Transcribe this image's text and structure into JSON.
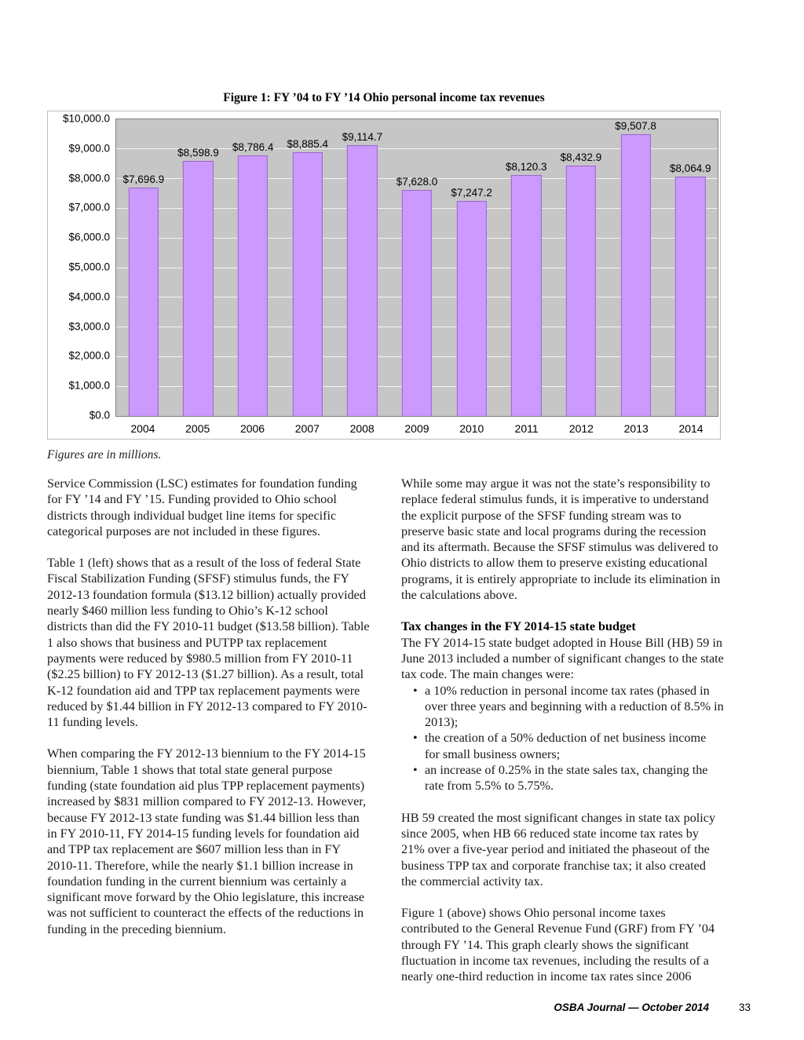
{
  "figure": {
    "caption": "Figures are in millions."
  },
  "chart_data": {
    "type": "bar",
    "title": "Figure 1: FY ’04 to FY ’14 Ohio personal income tax revenues",
    "categories": [
      "2004",
      "2005",
      "2006",
      "2007",
      "2008",
      "2009",
      "2010",
      "2011",
      "2012",
      "2013",
      "2014"
    ],
    "values": [
      7696.9,
      8598.9,
      8786.4,
      8885.4,
      9114.7,
      7628.0,
      7247.2,
      8120.3,
      8432.9,
      9507.8,
      8064.9
    ],
    "value_labels": [
      "$7,696.9",
      "$8,598.9",
      "$8,786.4",
      "$8,885.4",
      "$9,114.7",
      "$7,628.0",
      "$7,247.2",
      "$8,120.3",
      "$8,432.9",
      "$9,507.8",
      "$8,064.9"
    ],
    "xlabel": "",
    "ylabel": "",
    "ylim": [
      0,
      10000
    ],
    "ytick_interval": 1000,
    "ytick_labels": [
      "$0.0",
      "$1,000.0",
      "$2,000.0",
      "$3,000.0",
      "$4,000.0",
      "$5,000.0",
      "$6,000.0",
      "$7,000.0",
      "$8,000.0",
      "$9,000.0",
      "$10,000.0"
    ],
    "grid": true,
    "legend": false,
    "bar_color": "#CC99FF",
    "bar_border_color": "#9966CC",
    "plot_background": "#C6C6C6"
  },
  "columns": {
    "left": [
      {
        "type": "p",
        "text": "Service Commission (LSC) estimates for foundation funding for FY ’14 and FY ’15. Funding provided to Ohio school districts through individual budget line items for specific categorical purposes are not included in these figures."
      },
      {
        "type": "p",
        "text": "Table 1 (left) shows that as a result of the loss of federal State Fiscal Stabilization Funding (SFSF) stimulus funds, the FY 2012-13 foundation formula ($13.12 billion) actually provided nearly $460 million less funding to Ohio’s K-12 school districts than did the FY 2010-11 budget ($13.58 billion). Table 1 also shows that business and PUTPP tax replacement payments were reduced by $980.5 million from FY 2010-11 ($2.25 billion) to FY 2012-13 ($1.27 billion). As a result, total K-12 foundation aid and TPP tax replacement payments were reduced by $1.44 billion in FY 2012-13 compared to FY 2010-11 funding levels."
      },
      {
        "type": "p",
        "text": "When comparing the FY 2012-13 biennium to the FY 2014-15 biennium, Table 1 shows that total state general purpose funding (state foundation aid plus TPP replacement payments) increased by $831 million compared to FY 2012-13. However, because FY 2012-13 state funding was $1.44 billion less than in FY 2010-11, FY 2014-15 funding levels for foundation aid and TPP tax replacement are $607 million less than in FY 2010-11. Therefore, while the nearly $1.1 billion increase in foundation funding in the current biennium was certainly a significant move forward by the Ohio legislature, this increase was not sufficient to counteract the effects of the reductions in funding in the preceding biennium."
      }
    ],
    "right": [
      {
        "type": "p",
        "text": "While some may argue it was not the state’s responsibility to replace federal stimulus funds, it is imperative to understand the explicit purpose of the SFSF funding stream was to preserve basic state and local programs during the recession and its aftermath. Because the SFSF stimulus was delivered to Ohio districts to allow them to preserve existing educational programs, it is entirely appropriate to include its elimination in the calculations above."
      },
      {
        "type": "h",
        "text": "Tax changes in the FY 2014-15 state budget"
      },
      {
        "type": "p",
        "tight": true,
        "text": "The FY 2014-15 state budget adopted in House Bill (HB) 59 in June 2013 included a number of significant changes to the state tax code. The main changes were:"
      },
      {
        "type": "ul",
        "items": [
          "a 10% reduction in personal income tax rates (phased in over three years and beginning with a reduction of 8.5% in 2013);",
          "the creation of a 50% deduction of net business income for small business owners;",
          "an increase of 0.25% in the state sales tax, changing the rate from 5.5% to 5.75%."
        ]
      },
      {
        "type": "p",
        "text": "HB 59 created the most significant changes in state tax policy since 2005, when HB 66 reduced state income tax rates by 21% over a five-year period and initiated the phaseout of the business TPP tax and corporate franchise tax; it also created the commercial activity tax."
      },
      {
        "type": "p",
        "text": "Figure 1 (above) shows Ohio personal income taxes contributed to the General Revenue Fund (GRF) from FY ’04 through FY ’14. This graph clearly shows the significant fluctuation in income tax revenues, including the results of a nearly one-third reduction in income tax rates since 2006"
      }
    ]
  },
  "footer": {
    "journal": "OSBA Journal — October 2014",
    "page": "33"
  }
}
